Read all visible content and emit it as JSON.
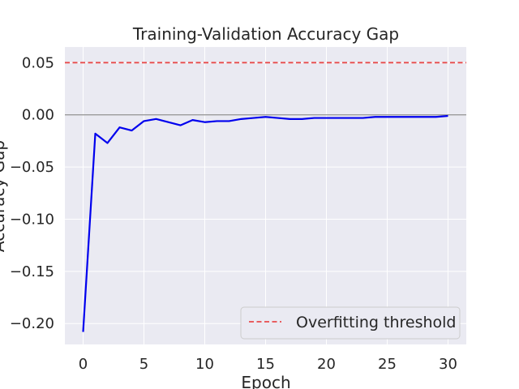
{
  "chart_data": {
    "type": "line",
    "title": "Training-Validation Accuracy Gap",
    "xlabel": "Epoch",
    "ylabel": "Accuracy Gap",
    "xlim": [
      -1.5,
      31.5
    ],
    "ylim": [
      -0.22,
      0.065
    ],
    "xticks": [
      0,
      5,
      10,
      15,
      20,
      25,
      30
    ],
    "yticks": [
      0.05,
      0.0,
      -0.05,
      -0.1,
      -0.15,
      -0.2
    ],
    "ytick_labels": [
      "0.05",
      "0.00",
      "−0.05",
      "−0.10",
      "−0.15",
      "−0.20"
    ],
    "grid": true,
    "legend_position": "bottom-right",
    "series": [
      {
        "name": "",
        "color": "#0000ee",
        "x": [
          0,
          1,
          2,
          3,
          4,
          5,
          6,
          7,
          8,
          9,
          10,
          11,
          12,
          13,
          14,
          15,
          16,
          17,
          18,
          19,
          20,
          21,
          22,
          23,
          24,
          25,
          26,
          27,
          28,
          29,
          30
        ],
        "y": [
          -0.208,
          -0.018,
          -0.027,
          -0.012,
          -0.015,
          -0.006,
          -0.004,
          -0.007,
          -0.01,
          -0.005,
          -0.007,
          -0.006,
          -0.006,
          -0.004,
          -0.003,
          -0.002,
          -0.003,
          -0.004,
          -0.004,
          -0.003,
          -0.003,
          -0.003,
          -0.003,
          -0.003,
          -0.002,
          -0.002,
          -0.002,
          -0.002,
          -0.002,
          -0.002,
          -0.001
        ]
      }
    ],
    "reference_lines": [
      {
        "name": "Overfitting threshold",
        "y": 0.05,
        "color": "#e84b4b",
        "style": "dashed"
      },
      {
        "name": "",
        "y": 0.0,
        "color": "#9a9a9a",
        "style": "solid"
      }
    ],
    "legend": [
      {
        "label": "Overfitting threshold",
        "color": "#e84b4b",
        "style": "dashed"
      }
    ],
    "colors": {
      "plot_background": "#eaeaf2",
      "grid": "#ffffff"
    }
  }
}
